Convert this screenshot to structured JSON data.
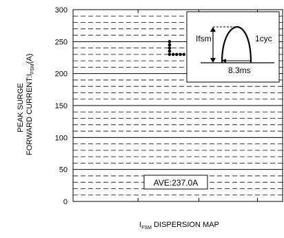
{
  "chart_data": {
    "type": "scatter",
    "title": "",
    "ylabel_line1": "PEAK SURGE",
    "ylabel_line2_main": "FORWARD CURRENT:I",
    "ylabel_line2_sub": "FSM",
    "ylabel_line2_unit": "(A)",
    "xlabel_main": "I",
    "xlabel_sub": "FSM",
    "xlabel_rest": " DISPERSION MAP",
    "ylim": [
      0,
      300
    ],
    "yticks": [
      0,
      50,
      100,
      150,
      200,
      250,
      300
    ],
    "points": [
      {
        "column": 1,
        "y": 250
      },
      {
        "column": 1,
        "y": 245
      },
      {
        "column": 1,
        "y": 240
      },
      {
        "column": 1,
        "y": 235
      },
      {
        "column": 1,
        "y": 230
      },
      {
        "column": 2,
        "y": 230
      },
      {
        "column": 3,
        "y": 230
      },
      {
        "column": 4,
        "y": 230
      },
      {
        "column": 5,
        "y": 230
      }
    ],
    "annotation": "AVE:237.0A",
    "inset": {
      "peak_label": "Ifsm",
      "cycle_label": "1cyc",
      "width_label": "8.3ms"
    }
  }
}
